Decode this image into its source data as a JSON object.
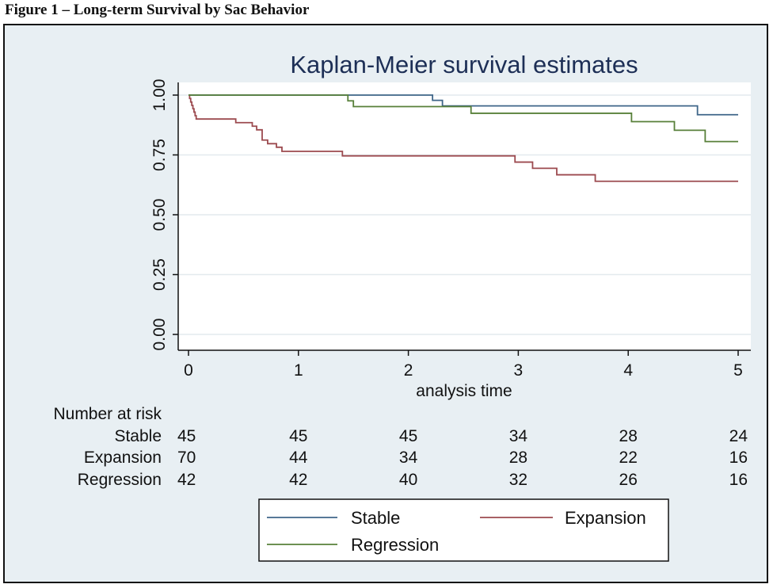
{
  "caption": "Figure 1 – Long-term Survival by Sac Behavior",
  "chart_data": {
    "type": "line",
    "subtype": "kaplan-meier step",
    "title": "Kaplan-Meier survival estimates",
    "xlabel": "analysis time",
    "ylabel": "",
    "xlim": [
      0,
      5
    ],
    "ylim": [
      0,
      1
    ],
    "x_ticks": [
      "0",
      "1",
      "2",
      "3",
      "4",
      "5"
    ],
    "y_ticks": [
      "0.00",
      "0.25",
      "0.50",
      "0.75",
      "1.00"
    ],
    "grid": true,
    "legend_position": "bottom",
    "series": [
      {
        "name": "Stable",
        "color": "#3f6689",
        "x": [
          0,
          2.22,
          2.31,
          4.63,
          5.0
        ],
        "y": [
          1.0,
          0.978,
          0.955,
          0.918,
          0.918
        ]
      },
      {
        "name": "Expansion",
        "color": "#9c4a4f",
        "x": [
          0,
          0.01,
          0.02,
          0.03,
          0.04,
          0.05,
          0.06,
          0.07,
          0.1,
          0.12,
          0.43,
          0.58,
          0.62,
          0.67,
          0.72,
          0.8,
          0.85,
          1.4,
          2.97,
          3.13,
          3.35,
          3.7,
          5.0
        ],
        "y": [
          1.0,
          0.986,
          0.971,
          0.957,
          0.943,
          0.929,
          0.914,
          0.9,
          0.9,
          0.9,
          0.885,
          0.87,
          0.855,
          0.812,
          0.797,
          0.782,
          0.765,
          0.746,
          0.72,
          0.694,
          0.667,
          0.64,
          0.64
        ]
      },
      {
        "name": "Regression",
        "color": "#58803a",
        "x": [
          0,
          1.45,
          1.5,
          2.57,
          4.03,
          4.42,
          4.7,
          5.0
        ],
        "y": [
          1.0,
          0.976,
          0.952,
          0.924,
          0.889,
          0.853,
          0.806,
          0.806
        ]
      }
    ],
    "risk_table": {
      "title": "Number at risk",
      "time_points": [
        0,
        1,
        2,
        3,
        4,
        5
      ],
      "rows": [
        {
          "label": "Stable",
          "counts": [
            "45",
            "45",
            "45",
            "34",
            "28",
            "24"
          ]
        },
        {
          "label": "Expansion",
          "counts": [
            "70",
            "44",
            "34",
            "28",
            "22",
            "16"
          ]
        },
        {
          "label": "Regression",
          "counts": [
            "42",
            "42",
            "40",
            "32",
            "26",
            "16"
          ]
        }
      ]
    }
  }
}
